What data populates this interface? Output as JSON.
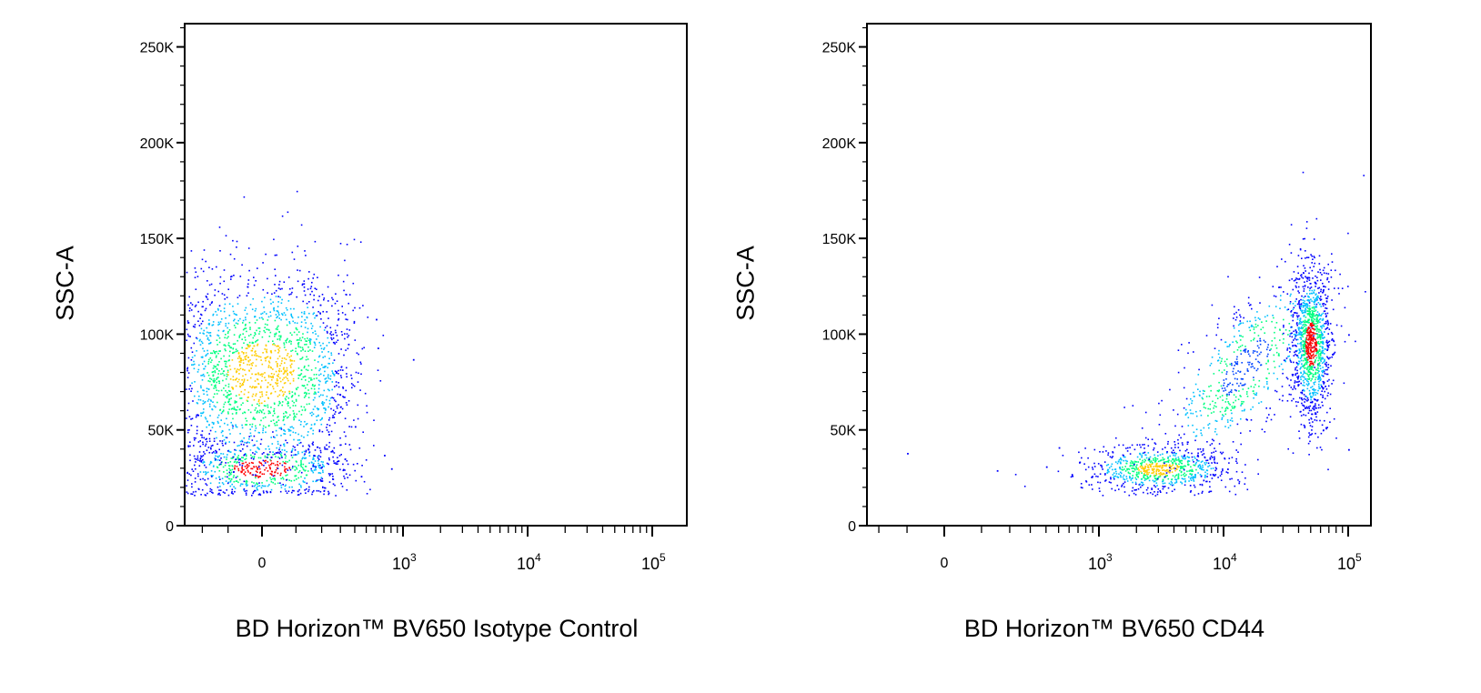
{
  "chart_data": [
    {
      "type": "scatter",
      "subtype": "flow-cytometry-density-dot-plot",
      "title": "",
      "xlabel": "BD Horizon™ BV650 Isotype Control",
      "ylabel": "SSC-A",
      "x_scale": "biexponential",
      "y_ticks": [
        "0",
        "50K",
        "100K",
        "150K",
        "200K",
        "250K"
      ],
      "y_tick_values": [
        0,
        50000,
        100000,
        150000,
        200000,
        250000
      ],
      "x_ticks": [
        "0",
        "10^3",
        "10^4",
        "10^5"
      ],
      "x_tick_values": [
        0,
        1000,
        10000,
        100000
      ],
      "ylim": [
        0,
        262144
      ],
      "density_colormap": [
        "#0000ff",
        "#00c0ff",
        "#00ff80",
        "#ffff00",
        "#ff0000"
      ],
      "populations": [
        {
          "name": "",
          "x_center": 0,
          "y_center": 30000,
          "x_spread": 150,
          "y_spread": 8000,
          "relative_count": 0.25,
          "peak_color": "#ff0000"
        },
        {
          "name": "",
          "x_center": 0,
          "y_center": 80000,
          "x_spread": 180,
          "y_spread": 28000,
          "relative_count": 0.75,
          "peak_color": "#ffcc00"
        }
      ],
      "outliers": [
        {
          "x": 1200,
          "y": 87000
        },
        {
          "x": 600,
          "y": 108000
        },
        {
          "x": 620,
          "y": 93000
        },
        {
          "x": 800,
          "y": 30000
        },
        {
          "x": 700,
          "y": 37000
        },
        {
          "x": 450,
          "y": 26000
        },
        {
          "x": 350,
          "y": 95000
        },
        {
          "x": 400,
          "y": 52000
        }
      ]
    },
    {
      "type": "scatter",
      "subtype": "flow-cytometry-density-dot-plot",
      "title": "",
      "xlabel": "BD Horizon™ BV650 CD44",
      "ylabel": "SSC-A",
      "x_scale": "biexponential",
      "y_ticks": [
        "0",
        "50K",
        "100K",
        "150K",
        "200K",
        "250K"
      ],
      "y_tick_values": [
        0,
        50000,
        100000,
        150000,
        200000,
        250000
      ],
      "x_ticks": [
        "0",
        "10^3",
        "10^4",
        "10^5"
      ],
      "x_tick_values": [
        0,
        1000,
        10000,
        100000
      ],
      "ylim": [
        0,
        262144
      ],
      "density_colormap": [
        "#0000ff",
        "#00c0ff",
        "#00ff80",
        "#ffff00",
        "#ff0000"
      ],
      "populations": [
        {
          "name": "",
          "x_center": 3000,
          "y_center": 30000,
          "x_spread_log": 0.3,
          "y_spread": 6000,
          "relative_count": 0.3,
          "peak_color": "#ffcc00"
        },
        {
          "name": "",
          "x_center": 15000,
          "y_center": 60000,
          "x_spread_log": 0.35,
          "y_spread": 18000,
          "relative_count": 0.25,
          "peak_color": "#0044ff"
        },
        {
          "name": "",
          "x_center": 50000,
          "y_center": 95000,
          "x_spread_log": 0.08,
          "y_spread": 20000,
          "relative_count": 0.45,
          "peak_color": "#ff0000"
        }
      ],
      "outliers": [
        {
          "x": -100,
          "y": 38000
        },
        {
          "x": 150,
          "y": 29000
        },
        {
          "x": 100000,
          "y": 100000
        },
        {
          "x": 100000,
          "y": 40000
        },
        {
          "x": 500,
          "y": 41000
        },
        {
          "x": 400,
          "y": 31000
        }
      ]
    }
  ],
  "tick_text": {
    "y": [
      "250K",
      "200K",
      "150K",
      "100K",
      "50K",
      "0"
    ],
    "x_zero": "0",
    "x_base": "10",
    "x_exps": [
      "3",
      "4",
      "5"
    ]
  }
}
